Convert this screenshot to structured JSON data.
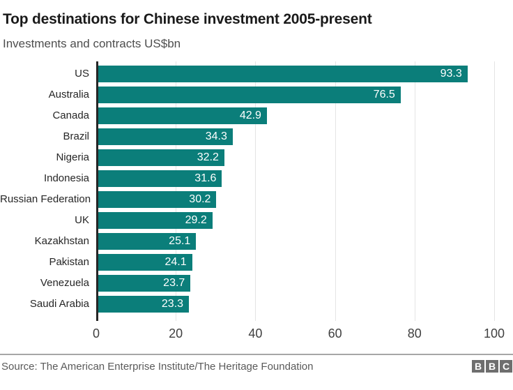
{
  "title": "Top destinations for Chinese investment 2005-present",
  "subtitle": "Investments and contracts US$bn",
  "chart_data": {
    "type": "bar",
    "orientation": "horizontal",
    "title": "Top destinations for Chinese investment 2005-present",
    "subtitle": "Investments and contracts US$bn",
    "categories": [
      "US",
      "Australia",
      "Canada",
      "Brazil",
      "Nigeria",
      "Indonesia",
      "Russian Federation",
      "UK",
      "Kazakhstan",
      "Pakistan",
      "Venezuela",
      "Saudi Arabia"
    ],
    "values": [
      93.3,
      76.5,
      42.9,
      34.3,
      32.2,
      31.6,
      30.2,
      29.2,
      25.1,
      24.1,
      23.7,
      23.3
    ],
    "xlim": [
      0,
      100
    ],
    "x_ticks": [
      0,
      20,
      40,
      60,
      80,
      100
    ],
    "grid": true,
    "legend": "none",
    "bar_color": "#0b7e7a",
    "value_label_color": "#ffffff",
    "axis_color": "#262626",
    "gridline_color": "#e4e4e4"
  },
  "footer": {
    "source": "Source: The American Enterprise Institute/The Heritage Foundation",
    "logo_letters": [
      "B",
      "B",
      "C"
    ]
  }
}
